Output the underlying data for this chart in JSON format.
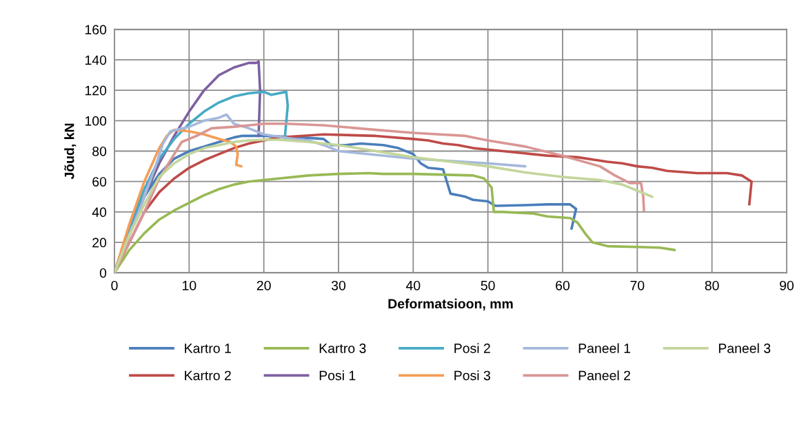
{
  "chart_data": {
    "type": "line",
    "xlabel": "Deformatsioon, mm",
    "ylabel": "Jõud, kN",
    "xlim": [
      0,
      90
    ],
    "ylim": [
      0,
      160
    ],
    "xticks": [
      0,
      10,
      20,
      30,
      40,
      50,
      60,
      70,
      80,
      90
    ],
    "yticks": [
      0,
      20,
      40,
      60,
      80,
      100,
      120,
      140,
      160
    ],
    "grid": true,
    "legend": "bottom",
    "marker": "none",
    "line_style": "solid",
    "series": [
      {
        "name": "Kartro 1",
        "color": "#4a7ebb",
        "x": [
          0,
          2,
          4,
          6,
          8,
          10,
          12,
          14,
          16,
          17,
          20,
          25,
          28,
          29,
          31,
          33,
          36,
          38,
          40,
          41,
          42,
          44,
          44.5,
          45,
          46,
          47,
          48,
          50,
          51,
          55,
          58,
          61,
          61.8,
          61.2
        ],
        "values": [
          0,
          30,
          50,
          65,
          75,
          80,
          83,
          86,
          89,
          90,
          90,
          89,
          88,
          84,
          84,
          85,
          84,
          82,
          78,
          72,
          69,
          68,
          60,
          52,
          51,
          50,
          48,
          47,
          44,
          44.5,
          45,
          45,
          42,
          29
        ]
      },
      {
        "name": "Kartro 2",
        "color": "#be4b48",
        "x": [
          0,
          2,
          4,
          6,
          8,
          10,
          12,
          14,
          16,
          18,
          20,
          22,
          25,
          28,
          35,
          40,
          42,
          44,
          46,
          48,
          50,
          54,
          58,
          62,
          66,
          68,
          70,
          72,
          74,
          78,
          82,
          84,
          85.3,
          85
        ],
        "values": [
          0,
          20,
          40,
          53,
          62,
          69,
          74,
          78,
          82,
          85,
          87,
          89,
          90,
          91,
          90,
          88,
          87,
          85,
          84,
          82,
          81,
          79,
          77,
          76,
          73,
          72,
          70,
          69,
          67,
          65.5,
          65.5,
          64,
          60,
          45
        ]
      },
      {
        "name": "Kartro 3",
        "color": "#98b954",
        "x": [
          0,
          2,
          4,
          6,
          8,
          10,
          12,
          14,
          16,
          18,
          20,
          22,
          24,
          26,
          30,
          34,
          36,
          40,
          48,
          49.5,
          50.5,
          50.8,
          52,
          56,
          58,
          61,
          62,
          63,
          64,
          66,
          70,
          73,
          75
        ],
        "values": [
          0,
          15,
          26,
          35,
          41,
          46,
          51,
          55,
          58,
          60,
          61,
          62,
          63,
          64,
          65,
          65.5,
          65,
          65,
          64,
          62,
          56,
          40,
          40,
          39,
          37,
          36,
          33,
          26,
          20,
          17.5,
          17,
          16.5,
          15
        ]
      },
      {
        "name": "Posi 1",
        "color": "#7d60a0",
        "x": [
          0,
          2,
          4,
          6,
          8,
          10,
          12,
          14,
          16,
          18,
          19,
          19.3,
          19.5,
          19.3
        ],
        "values": [
          0,
          25,
          50,
          72,
          90,
          106,
          120,
          130,
          135,
          138,
          138,
          139,
          120,
          90
        ]
      },
      {
        "name": "Posi 2",
        "color": "#46aac5",
        "x": [
          0,
          2,
          4,
          6,
          8,
          10,
          12,
          14,
          16,
          18,
          20,
          21,
          23,
          23.2,
          22.8
        ],
        "values": [
          0,
          30,
          55,
          75,
          88,
          98,
          106,
          112,
          116,
          118,
          119,
          117,
          119,
          110,
          88
        ]
      },
      {
        "name": "Posi 3",
        "color": "#f59d56",
        "x": [
          0,
          2,
          4,
          6,
          7,
          8,
          10,
          12,
          14,
          15.5,
          16.3,
          16.5,
          16.3,
          17
        ],
        "values": [
          0,
          32,
          60,
          82,
          90,
          94,
          93,
          91,
          88,
          86,
          83,
          78,
          71,
          70
        ]
      },
      {
        "name": "Paneel 1",
        "color": "#a5b8dc",
        "x": [
          0,
          2,
          4,
          5.5,
          6.5,
          7.5,
          10,
          12,
          14,
          15,
          16,
          18,
          20,
          24,
          26,
          28,
          30,
          40,
          50,
          55
        ],
        "values": [
          0,
          25,
          50,
          70,
          85,
          93,
          96,
          100,
          102,
          104,
          98,
          95,
          91,
          88,
          87,
          84,
          80,
          75,
          72,
          70
        ]
      },
      {
        "name": "Paneel 2",
        "color": "#d99694",
        "x": [
          0,
          2,
          4,
          6,
          8,
          9,
          11,
          13,
          16,
          18,
          20,
          23,
          28,
          35,
          40,
          47,
          50,
          55,
          60,
          65,
          67,
          69,
          70.5,
          70.8,
          70.9
        ],
        "values": [
          0,
          20,
          40,
          62,
          78,
          86,
          90,
          95,
          96,
          97,
          98,
          98,
          97,
          94,
          92,
          90,
          87,
          83,
          77,
          70,
          64,
          59,
          59,
          50,
          41
        ]
      },
      {
        "name": "Paneel 3",
        "color": "#c3d69b",
        "x": [
          0,
          2,
          4,
          6,
          8,
          10,
          12,
          14,
          16,
          18,
          20,
          22,
          26,
          30,
          35,
          40,
          45,
          50,
          55,
          60,
          65,
          68,
          70,
          72
        ],
        "values": [
          0,
          25,
          45,
          63,
          72,
          78,
          82,
          84,
          86,
          87,
          87.5,
          87.5,
          86,
          84,
          80,
          76,
          73,
          70,
          66,
          63,
          61,
          58,
          54,
          50
        ]
      }
    ]
  }
}
